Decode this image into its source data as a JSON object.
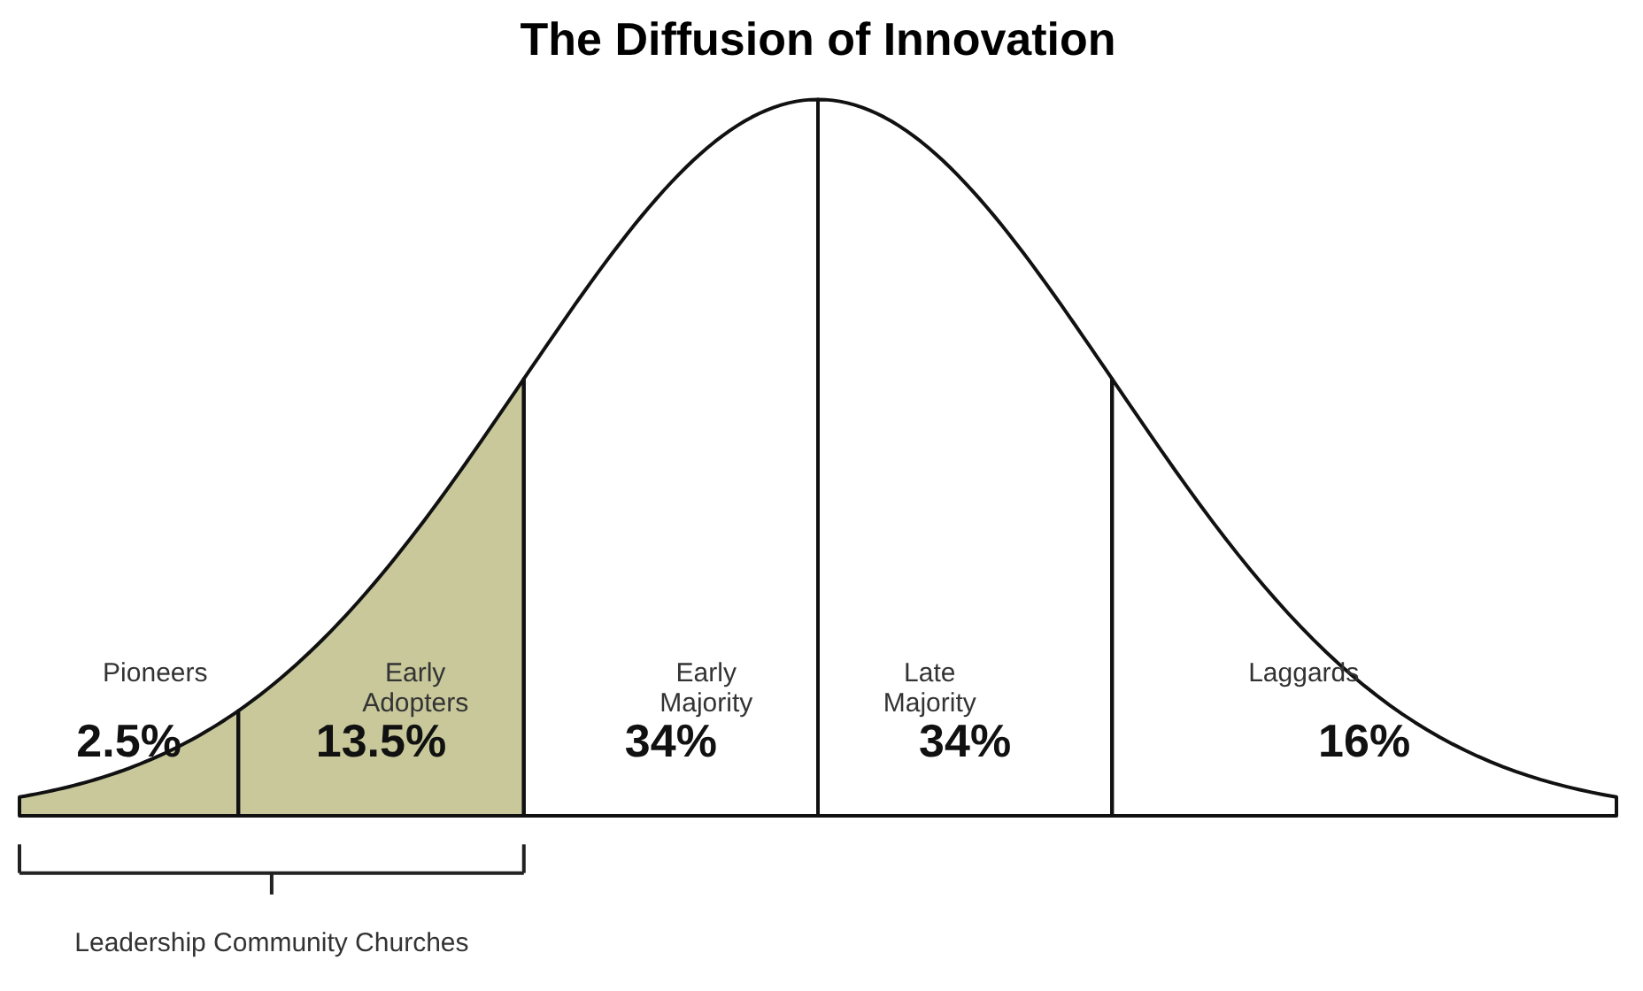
{
  "chart_data": {
    "type": "other",
    "title": "The Diffusion of Innovation",
    "categories": [
      "Pioneers",
      "Early Adopters",
      "Early Majority",
      "Late Majority",
      "Laggards"
    ],
    "values": [
      2.5,
      13.5,
      34,
      34,
      16
    ],
    "value_labels": [
      "2.5%",
      "13.5%",
      "34%",
      "34%",
      "16%"
    ],
    "colors": [
      "#c8c89b",
      "#c8c89b",
      "#ffffff",
      "#ffffff",
      "#ffffff"
    ],
    "annotations": [
      "Leadership Community Churches"
    ]
  }
}
